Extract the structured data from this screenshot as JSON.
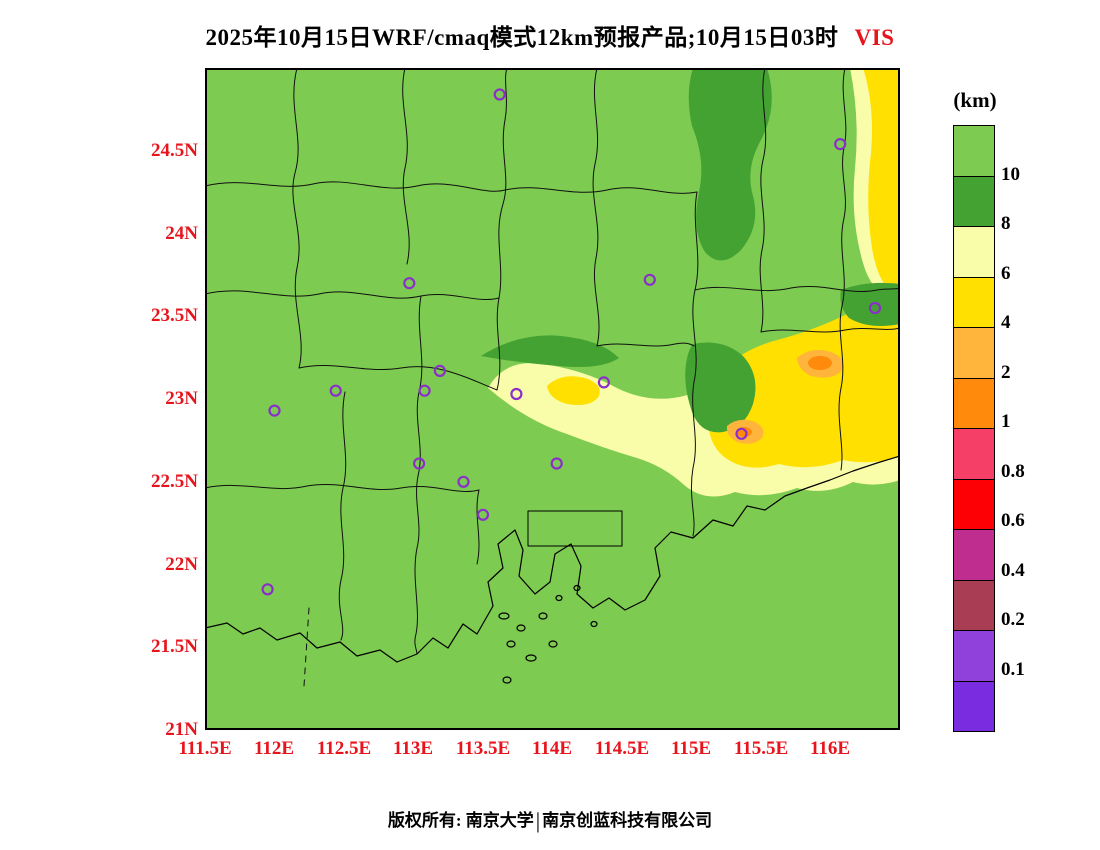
{
  "title": {
    "main": "2025年10月15日WRF/cmaq模式12km预报产品;10月15日03时",
    "variable": "VIS"
  },
  "footer": {
    "owner": "版权所有: 南京大学",
    "divider": "|",
    "company": "南京创蓝科技有限公司"
  },
  "palette": {
    "bg_green": "#7DCB51",
    "dark_green": "#44A233",
    "pale_yellow": "#F9FCA9",
    "yellow": "#FFE001",
    "amber": "#FFB43C",
    "orange": "#FF8A0B",
    "rose": "#F63F66",
    "red": "#FD0006",
    "magenta": "#BF2E8F",
    "maroon": "#A83D53",
    "purple": "#9040DB",
    "violet": "#7A2CE0",
    "marker": "#8A2FC9",
    "axis_red": "#E8141C",
    "boundary": "#101010"
  },
  "legend": {
    "title": "(km)",
    "labels": [
      "10",
      "8",
      "6",
      "4",
      "2",
      "1",
      "0.8",
      "0.6",
      "0.4",
      "0.2",
      "0.1"
    ],
    "colors": [
      "#7DCB51",
      "#44A233",
      "#F9FCA9",
      "#FFE001",
      "#FFB43C",
      "#FF8A0B",
      "#F63F66",
      "#FD0006",
      "#BF2E8F",
      "#A83D53",
      "#9040DB",
      "#7A2CE0"
    ]
  },
  "chart_data": {
    "type": "heatmap",
    "subtype": "filled-contour-map",
    "title": "2025年10月15日WRF/cmaq模式12km预报产品;10月15日03时 VIS",
    "variable": "VIS",
    "units": "km",
    "model": "WRF/cmaq 12km",
    "valid_label": "10月15日03时",
    "legend_title": "(km)",
    "legend_levels": [
      0.1,
      0.2,
      0.4,
      0.6,
      0.8,
      1,
      2,
      4,
      6,
      8,
      10
    ],
    "x": {
      "range": [
        111.5,
        116.5
      ],
      "ticks": [
        "111.5E",
        "112E",
        "112.5E",
        "113E",
        "113.5E",
        "114E",
        "114.5E",
        "115E",
        "115.5E",
        "116E"
      ]
    },
    "y": {
      "range": [
        21.0,
        25.0
      ],
      "ticks_top_to_bottom": [
        "24.5N",
        "24N",
        "23.5N",
        "23N",
        "22.5N",
        "22N",
        "21.5N",
        "21N"
      ]
    },
    "field_summary": [
      "Most of domain visibility > 10 km (light green)",
      "Dark green 8-10 km patches near 24.2-25N 114.9-115.6E, 23.3N 115E-115.6E and along east edge",
      "Pale yellow 6-8 km band along southeast coast from 113.2E,23.2N to east edge",
      "Yellow 4-6 km core over 116E-116.5E, 22.9-23.6N and along right edge to NE corner",
      "Orange 2-4 km minima near 115.9E,23.35N and 115.35E,22.8N"
    ],
    "stations": [
      [
        113.62,
        24.84
      ],
      [
        116.07,
        24.54
      ],
      [
        116.32,
        23.55
      ],
      [
        114.7,
        23.72
      ],
      [
        112.97,
        23.7
      ],
      [
        113.19,
        23.17
      ],
      [
        113.08,
        23.05
      ],
      [
        112.44,
        23.05
      ],
      [
        112.0,
        22.93
      ],
      [
        113.74,
        23.03
      ],
      [
        114.37,
        23.1
      ],
      [
        115.36,
        22.79
      ],
      [
        114.03,
        22.61
      ],
      [
        113.04,
        22.61
      ],
      [
        113.36,
        22.5
      ],
      [
        113.5,
        22.3
      ],
      [
        111.95,
        21.85
      ]
    ]
  }
}
